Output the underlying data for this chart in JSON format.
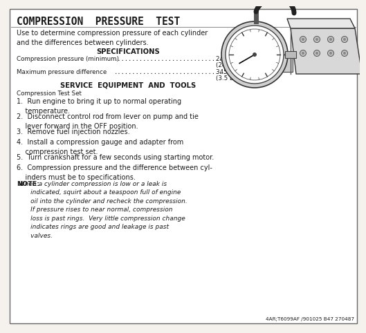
{
  "title": "COMPRESSION  PRESSURE  TEST",
  "intro": "Use to determine compression pressure of each cylinder\nand the differences between cylinders.",
  "spec_header": "SPECIFICATIONS",
  "spec1_label": "Compression pressure (minimum)",
  "spec1_dots": "...............................",
  "spec1_value": "2413 kPa",
  "spec1_sub": "(24 bar) (350 psi)",
  "spec2_label": "Maximum pressure difference",
  "spec2_dots": ".................................",
  "spec2_value": "345 kPa",
  "spec2_sub": "(3.5 bar) (50 psi)",
  "service_header": "SERVICE  EQUIPMENT  AND  TOOLS",
  "service_item": "Compression Test Set",
  "steps": [
    "1.  Run engine to bring it up to normal operating\n    temperature.",
    "2.  Disconnect control rod from lever on pump and tie\n    lever forward in the OFF position.",
    "3.  Remove fuel injection nozzles.",
    "4.  Install a compression gauge and adapter from\n    compression test set.",
    "5.  Turn crankshaft for a few seconds using starting motor.",
    "6.  Compression pressure and the difference between cyl-\n    inders must be to specifications."
  ],
  "note_label": "NOTE:",
  "note_text": " When a cylinder compression is low or a leak is\n       indicated, squirt about a teaspoon full of engine\n       oil into the cylinder and recheck the compression.\n       If pressure rises to near normal, compression\n       loss is past rings.  Very little compression change\n       indicates rings are good and leakage is past\n       valves.",
  "footer": "4AR;T6099AF /901025 B47 270487",
  "bg_color": "#f5f2ee",
  "border_color": "#666666",
  "text_color": "#1a1a1a"
}
